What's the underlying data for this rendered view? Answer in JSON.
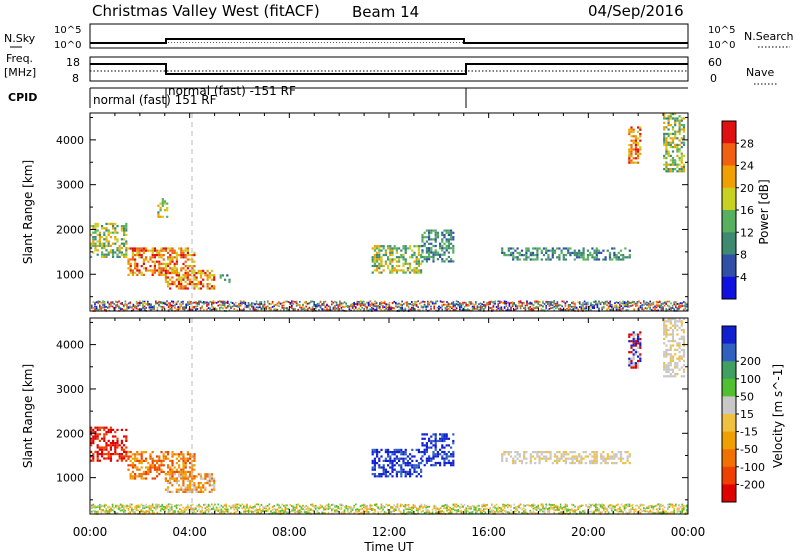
{
  "header": {
    "title": "Christmas Valley West (fitACF)",
    "beam": "Beam 14",
    "date": "04/Sep/2016"
  },
  "strip_labels": {
    "nsky": "N.Sky",
    "freq_line1": "Freq.",
    "freq_line2": "[MHz]",
    "cpid": "CPID",
    "nsearch": "N.Search",
    "nave": "Nave"
  },
  "strip_ticks": {
    "nsky_left": [
      "10^5",
      "10^0"
    ],
    "nsky_right": [
      "10^5",
      "10^0"
    ],
    "freq_left": [
      "18",
      "8"
    ],
    "nave_right": [
      "60",
      "0"
    ]
  },
  "cpid_labels": [
    "normal (fast) 151 RF",
    "normal (fast) -151 RF"
  ],
  "colors": {
    "power": [
      "#1010e0",
      "#3050a8",
      "#3e8a70",
      "#56b060",
      "#c8d020",
      "#f0a000",
      "#f06010",
      "#e01010"
    ],
    "velocity": [
      "#e00000",
      "#f04000",
      "#f07000",
      "#f0a000",
      "#f0c040",
      "#c8c8c8",
      "#50c030",
      "#40a060",
      "#3060c0",
      "#1020d0"
    ]
  },
  "chart_data": [
    {
      "type": "heatmap",
      "name": "power",
      "xlabel": "Time UT",
      "ylabel": "Slant Range [km]",
      "xlim": [
        "00:00",
        "00:00"
      ],
      "x_ticks": [
        "00:00",
        "04:00",
        "08:00",
        "12:00",
        "16:00",
        "20:00",
        "00:00"
      ],
      "ylim": [
        180,
        4600
      ],
      "y_ticks": [
        1000,
        2000,
        3000,
        4000
      ],
      "colorbar": {
        "label": "Power [dB]",
        "ticks": [
          4,
          8,
          12,
          16,
          20,
          24,
          28
        ],
        "range": [
          0,
          32
        ]
      },
      "regions": [
        {
          "t0": 0.0,
          "t1": 1.5,
          "r0": 1400,
          "r1": 2150,
          "level": "mid"
        },
        {
          "t0": 1.5,
          "t1": 4.2,
          "r0": 1000,
          "r1": 1600,
          "level": "high"
        },
        {
          "t0": 3.0,
          "t1": 5.0,
          "r0": 700,
          "r1": 1100,
          "level": "high"
        },
        {
          "t0": 5.2,
          "t1": 5.6,
          "r0": 850,
          "r1": 1000,
          "level": "low"
        },
        {
          "t0": 2.7,
          "t1": 3.1,
          "r0": 2300,
          "r1": 2700,
          "level": "mid"
        },
        {
          "t0": 11.3,
          "t1": 13.3,
          "r0": 1050,
          "r1": 1650,
          "level": "mid"
        },
        {
          "t0": 13.3,
          "t1": 14.6,
          "r0": 1300,
          "r1": 2000,
          "level": "low"
        },
        {
          "t0": 16.5,
          "t1": 21.7,
          "r0": 1350,
          "r1": 1600,
          "level": "low"
        },
        {
          "t0": 21.6,
          "t1": 22.1,
          "r0": 3500,
          "r1": 4300,
          "level": "high"
        },
        {
          "t0": 23.0,
          "t1": 23.8,
          "r0": 3300,
          "r1": 4600,
          "level": "mid"
        }
      ],
      "ground_scatter_band": [
        200,
        420
      ]
    },
    {
      "type": "heatmap",
      "name": "velocity",
      "xlabel": "Time UT",
      "ylabel": "Slant Range [km]",
      "xlim": [
        "00:00",
        "00:00"
      ],
      "x_ticks": [
        "00:00",
        "04:00",
        "08:00",
        "12:00",
        "16:00",
        "20:00",
        "00:00"
      ],
      "ylim": [
        180,
        4600
      ],
      "y_ticks": [
        1000,
        2000,
        3000,
        4000
      ],
      "colorbar": {
        "label": "Velocity [m s^-1]",
        "ticks": [
          -200,
          -100,
          -50,
          -15,
          15,
          50,
          100,
          200
        ]
      },
      "regions": [
        {
          "t0": 0.0,
          "t1": 1.5,
          "r0": 1400,
          "r1": 2150,
          "level": "neg-strong"
        },
        {
          "t0": 1.5,
          "t1": 4.2,
          "r0": 1000,
          "r1": 1600,
          "level": "neg-mid"
        },
        {
          "t0": 3.0,
          "t1": 5.0,
          "r0": 700,
          "r1": 1100,
          "level": "neg-weak"
        },
        {
          "t0": 11.3,
          "t1": 13.3,
          "r0": 1050,
          "r1": 1650,
          "level": "pos-strong"
        },
        {
          "t0": 13.3,
          "t1": 14.6,
          "r0": 1300,
          "r1": 2000,
          "level": "pos-strong"
        },
        {
          "t0": 16.5,
          "t1": 21.7,
          "r0": 1350,
          "r1": 1600,
          "level": "zero"
        },
        {
          "t0": 21.6,
          "t1": 22.1,
          "r0": 3500,
          "r1": 4300,
          "level": "mixed"
        },
        {
          "t0": 23.0,
          "t1": 23.8,
          "r0": 3300,
          "r1": 4600,
          "level": "zero"
        }
      ],
      "ground_scatter_band": [
        200,
        420
      ]
    }
  ]
}
